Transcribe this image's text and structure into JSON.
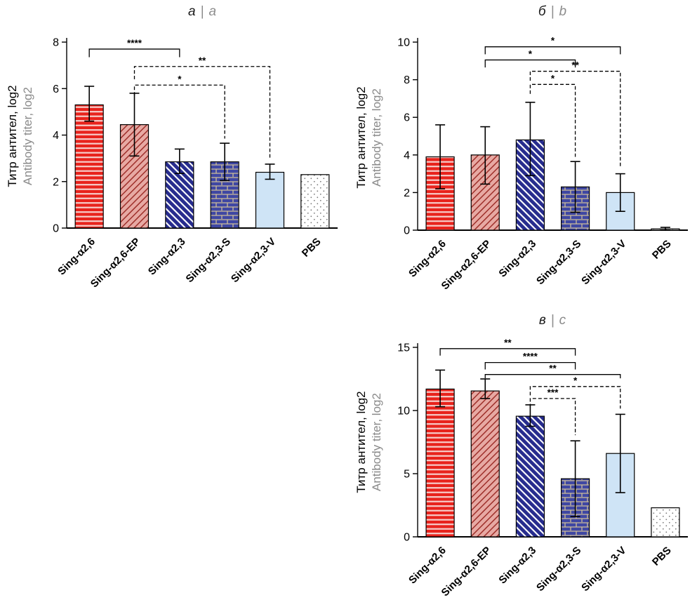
{
  "figure": {
    "background": "#ffffff",
    "panel_titles": [
      "а | a",
      "б | b",
      "в | c"
    ]
  },
  "palette": {
    "red": "#e8231c",
    "red_stripe": "#f6cdca",
    "pink": "#e7a9a3",
    "pink_hatch": "#9e2f2a",
    "navy": "#272c8e",
    "navy_stripe": "#ffffff",
    "brick_blue": "#3f47a3",
    "brick_mortar": "#cdbd98",
    "light_blue": "#cfe4f6",
    "dot_gray": "#7a7a7a",
    "axis": "#000000",
    "title_gray": "#8c8c8c"
  },
  "chart_data": [
    {
      "type": "bar",
      "panel_label_ru": "а",
      "separator": "|",
      "panel_label_en": "a",
      "ylabel_ru": "Титр антител, log2",
      "ylabel_en": "Antibody titer, log2",
      "categories": [
        "Sing-α2,6",
        "Sing-α2,6-EP",
        "Sing-α2,3",
        "Sing-α2,3-S",
        "Sing-α2,3-V",
        "PBS"
      ],
      "values": [
        5.3,
        4.45,
        2.85,
        2.85,
        2.4,
        2.3
      ],
      "error_low": [
        4.6,
        3.1,
        2.35,
        2.05,
        2.1,
        null
      ],
      "error_high": [
        6.1,
        5.8,
        3.4,
        3.65,
        2.75,
        null
      ],
      "ylim": [
        0,
        8
      ],
      "yticks": [
        0,
        2,
        4,
        6,
        8
      ],
      "grid": false,
      "legend": "none",
      "bar_styles": [
        "red-horizontal-stripes",
        "pink-diagonal-hatch",
        "navy-diagonal-stripes",
        "blue-brick",
        "light-blue-solid",
        "white-dots"
      ],
      "significance": [
        {
          "from": 0,
          "to": 2,
          "y": 7.7,
          "dl": 0.35,
          "dr": 0.35,
          "label": "****",
          "style": "solid"
        },
        {
          "from": 1,
          "to": 4,
          "y": 6.95,
          "dl": 0.55,
          "dr": 3.95,
          "label": "**",
          "style": "dashed"
        },
        {
          "from": 1,
          "to": 3,
          "y": 6.15,
          "dl": 0.45,
          "dr": 2.3,
          "label": "*",
          "style": "dashed"
        }
      ]
    },
    {
      "type": "bar",
      "panel_label_ru": "б",
      "separator": "|",
      "panel_label_en": "b",
      "ylabel_ru": "Титр антител, log2",
      "ylabel_en": "Antibody titer, log2",
      "categories": [
        "Sing-α2,6",
        "Sing-α2,6-EP",
        "Sing-α2,3",
        "Sing-α2,3-S",
        "Sing-α2,3-V",
        "PBS"
      ],
      "values": [
        3.9,
        4.0,
        4.8,
        2.3,
        2.0,
        0.07
      ],
      "error_low": [
        2.2,
        2.45,
        2.9,
        0.95,
        1.0,
        0.0
      ],
      "error_high": [
        5.6,
        5.5,
        6.8,
        3.65,
        3.0,
        0.15
      ],
      "ylim": [
        0,
        10
      ],
      "yticks": [
        0,
        2,
        4,
        6,
        8,
        10
      ],
      "grid": false,
      "legend": "none",
      "bar_styles": [
        "red-horizontal-stripes",
        "pink-diagonal-hatch",
        "navy-diagonal-stripes",
        "blue-brick",
        "light-blue-solid",
        "white-dots"
      ],
      "significance": [
        {
          "from": 1,
          "to": 4,
          "y": 9.75,
          "dl": 0.4,
          "dr": 0.4,
          "label": "*",
          "style": "solid"
        },
        {
          "from": 1,
          "to": 3,
          "y": 9.05,
          "dl": 0.4,
          "dr": 0.4,
          "label": "*",
          "style": "solid"
        },
        {
          "from": 2,
          "to": 4,
          "y": 8.45,
          "dl": 0.5,
          "dr": 5.1,
          "label": "**",
          "style": "dashed"
        },
        {
          "from": 2,
          "to": 3,
          "y": 7.75,
          "dl": 0.5,
          "dr": 3.85,
          "label": "*",
          "style": "dashed"
        }
      ]
    },
    {
      "type": "bar",
      "panel_label_ru": "в",
      "separator": "|",
      "panel_label_en": "c",
      "ylabel_ru": "Титр антител, log2",
      "ylabel_en": "Antibody titer, log2",
      "categories": [
        "Sing-α2,6",
        "Sing-α2,6-EP",
        "Sing-α2,3",
        "Sing-α2,3-S",
        "Sing-α2,3-V",
        "PBS"
      ],
      "values": [
        11.7,
        11.55,
        9.55,
        4.6,
        6.6,
        2.3
      ],
      "error_low": [
        10.3,
        10.95,
        8.75,
        1.6,
        3.5,
        null
      ],
      "error_high": [
        13.2,
        12.5,
        10.45,
        7.6,
        9.7,
        null
      ],
      "ylim": [
        0,
        15
      ],
      "yticks": [
        0,
        5,
        10,
        15
      ],
      "grid": false,
      "legend": "none",
      "bar_styles": [
        "red-horizontal-stripes",
        "pink-diagonal-hatch",
        "navy-diagonal-stripes",
        "blue-brick",
        "light-blue-solid",
        "white-dots"
      ],
      "significance": [
        {
          "from": 0,
          "to": 3,
          "y": 14.9,
          "dl": 0.55,
          "dr": 0.55,
          "label": "**",
          "style": "solid"
        },
        {
          "from": 1,
          "to": 3,
          "y": 13.8,
          "dl": 0.55,
          "dr": 0.55,
          "label": "****",
          "style": "solid"
        },
        {
          "from": 1,
          "to": 4,
          "y": 12.85,
          "dl": 0.3,
          "dr": 0.3,
          "label": "**",
          "style": "solid"
        },
        {
          "from": 2,
          "to": 4,
          "y": 11.9,
          "dl": 0.7,
          "dr": 1.75,
          "label": "*",
          "style": "dashed"
        },
        {
          "from": 2,
          "to": 3,
          "y": 10.95,
          "dl": 0.7,
          "dr": 2.9,
          "label": "***",
          "style": "dashed"
        }
      ]
    }
  ]
}
